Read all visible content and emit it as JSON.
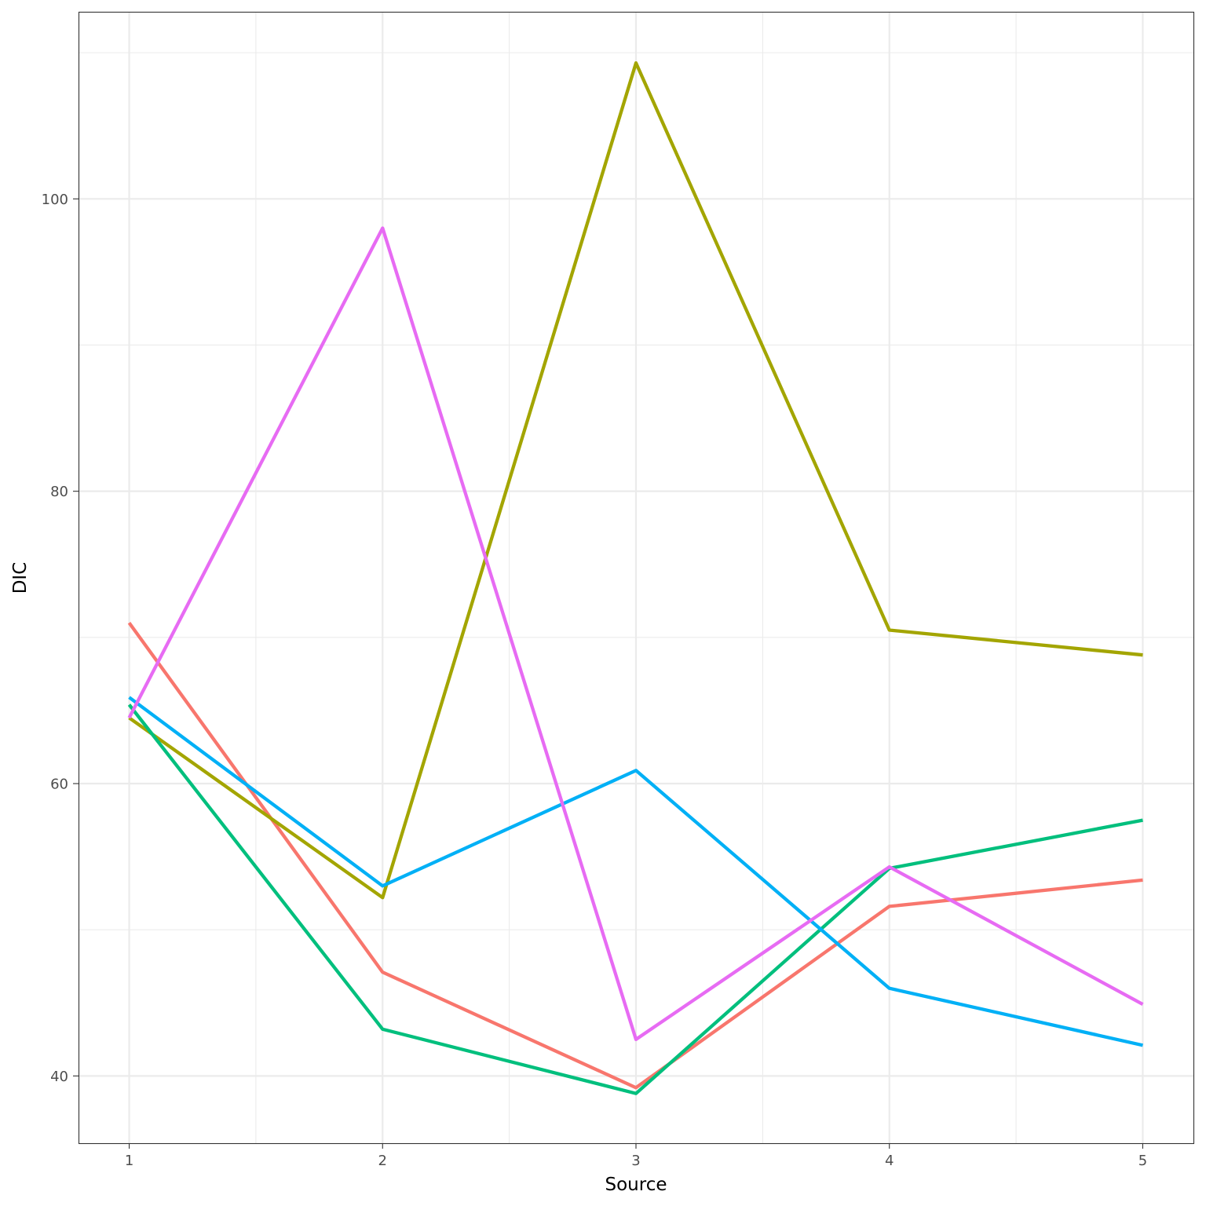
{
  "chart_data": {
    "type": "line",
    "title": "",
    "xlabel": "Source",
    "ylabel": "DIC",
    "x": [
      1,
      2,
      3,
      4,
      5
    ],
    "xlim": [
      0.8,
      5.2
    ],
    "ylim": [
      35.4,
      112.8
    ],
    "y_ticks": [
      40,
      60,
      80,
      100
    ],
    "x_ticks": [
      1,
      2,
      3,
      4,
      5
    ],
    "grid": true,
    "legend": "none",
    "series": [
      {
        "color": "#F8766D",
        "values": [
          71.0,
          47.1,
          39.2,
          51.6,
          53.4
        ]
      },
      {
        "color": "#A3A500",
        "values": [
          64.5,
          52.2,
          109.3,
          70.5,
          68.8
        ]
      },
      {
        "color": "#00BF7D",
        "values": [
          65.4,
          43.2,
          38.8,
          54.2,
          57.5
        ]
      },
      {
        "color": "#00B0F6",
        "values": [
          65.9,
          53.0,
          60.9,
          46.0,
          42.1
        ]
      },
      {
        "color": "#E76BF3",
        "values": [
          64.5,
          98.0,
          42.5,
          54.3,
          44.9
        ]
      }
    ]
  }
}
